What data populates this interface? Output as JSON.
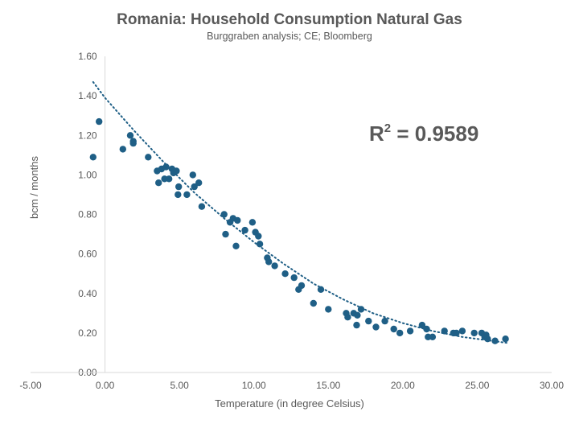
{
  "chart_data": {
    "type": "scatter",
    "title": "Romania: Household Consumption Natural Gas",
    "subtitle": "Burggraben analysis; CE; Bloomberg",
    "xlabel": "Temperature (in degree Celsius)",
    "ylabel": "bcm / months",
    "xlim": [
      -5,
      30
    ],
    "ylim": [
      0,
      1.6
    ],
    "x_ticks": [
      "-5.00",
      "0.00",
      "5.00",
      "10.00",
      "15.00",
      "20.00",
      "25.00",
      "30.00"
    ],
    "x_ticks_values": [
      -5,
      0,
      5,
      10,
      15,
      20,
      25,
      30
    ],
    "y_ticks": [
      "0.00",
      "0.20",
      "0.40",
      "0.60",
      "0.80",
      "1.00",
      "1.20",
      "1.40",
      "1.60"
    ],
    "y_ticks_values": [
      0,
      0.2,
      0.4,
      0.6,
      0.8,
      1.0,
      1.2,
      1.4,
      1.6
    ],
    "annotation": {
      "text": "R",
      "sup": "2",
      "value_text": " = 0.9589"
    },
    "marker_color": "#1f5f86",
    "trendline_color": "#1f5f86",
    "trendline": {
      "type": "polynomial",
      "x": [
        -0.8,
        0,
        2,
        4,
        6,
        8,
        10,
        12,
        14,
        16,
        18,
        20,
        22,
        24,
        26,
        27
      ],
      "y": [
        1.47,
        1.39,
        1.22,
        1.06,
        0.91,
        0.78,
        0.66,
        0.55,
        0.45,
        0.37,
        0.3,
        0.25,
        0.21,
        0.18,
        0.16,
        0.15
      ]
    },
    "points": [
      {
        "x": -0.8,
        "y": 1.09
      },
      {
        "x": -0.4,
        "y": 1.27
      },
      {
        "x": 1.2,
        "y": 1.13
      },
      {
        "x": 1.7,
        "y": 1.2
      },
      {
        "x": 1.9,
        "y": 1.17
      },
      {
        "x": 1.9,
        "y": 1.16
      },
      {
        "x": 2.9,
        "y": 1.09
      },
      {
        "x": 3.5,
        "y": 1.02
      },
      {
        "x": 3.6,
        "y": 0.96
      },
      {
        "x": 3.8,
        "y": 1.03
      },
      {
        "x": 4.0,
        "y": 0.98
      },
      {
        "x": 4.1,
        "y": 1.04
      },
      {
        "x": 4.3,
        "y": 0.98
      },
      {
        "x": 4.5,
        "y": 1.03
      },
      {
        "x": 4.6,
        "y": 1.01
      },
      {
        "x": 4.8,
        "y": 1.02
      },
      {
        "x": 4.9,
        "y": 0.9
      },
      {
        "x": 4.95,
        "y": 0.94
      },
      {
        "x": 5.5,
        "y": 0.9
      },
      {
        "x": 5.9,
        "y": 1.0
      },
      {
        "x": 6.0,
        "y": 0.94
      },
      {
        "x": 6.3,
        "y": 0.96
      },
      {
        "x": 6.5,
        "y": 0.84
      },
      {
        "x": 8.0,
        "y": 0.8
      },
      {
        "x": 8.1,
        "y": 0.7
      },
      {
        "x": 8.4,
        "y": 0.76
      },
      {
        "x": 8.6,
        "y": 0.78
      },
      {
        "x": 8.8,
        "y": 0.64
      },
      {
        "x": 8.9,
        "y": 0.77
      },
      {
        "x": 9.4,
        "y": 0.72
      },
      {
        "x": 9.9,
        "y": 0.76
      },
      {
        "x": 10.1,
        "y": 0.71
      },
      {
        "x": 10.3,
        "y": 0.69
      },
      {
        "x": 10.4,
        "y": 0.65
      },
      {
        "x": 10.9,
        "y": 0.58
      },
      {
        "x": 11.0,
        "y": 0.56
      },
      {
        "x": 11.4,
        "y": 0.54
      },
      {
        "x": 12.1,
        "y": 0.5
      },
      {
        "x": 12.7,
        "y": 0.48
      },
      {
        "x": 13.0,
        "y": 0.42
      },
      {
        "x": 13.2,
        "y": 0.44
      },
      {
        "x": 14.0,
        "y": 0.35
      },
      {
        "x": 14.5,
        "y": 0.42
      },
      {
        "x": 15.0,
        "y": 0.32
      },
      {
        "x": 16.2,
        "y": 0.3
      },
      {
        "x": 16.3,
        "y": 0.28
      },
      {
        "x": 16.7,
        "y": 0.3
      },
      {
        "x": 16.9,
        "y": 0.24
      },
      {
        "x": 16.95,
        "y": 0.29
      },
      {
        "x": 17.2,
        "y": 0.32
      },
      {
        "x": 17.7,
        "y": 0.26
      },
      {
        "x": 18.2,
        "y": 0.23
      },
      {
        "x": 18.8,
        "y": 0.26
      },
      {
        "x": 19.4,
        "y": 0.22
      },
      {
        "x": 19.8,
        "y": 0.2
      },
      {
        "x": 20.5,
        "y": 0.21
      },
      {
        "x": 21.3,
        "y": 0.24
      },
      {
        "x": 21.6,
        "y": 0.22
      },
      {
        "x": 21.7,
        "y": 0.18
      },
      {
        "x": 22.0,
        "y": 0.18
      },
      {
        "x": 22.8,
        "y": 0.21
      },
      {
        "x": 23.4,
        "y": 0.2
      },
      {
        "x": 23.6,
        "y": 0.2
      },
      {
        "x": 24.0,
        "y": 0.21
      },
      {
        "x": 24.8,
        "y": 0.2
      },
      {
        "x": 25.3,
        "y": 0.2
      },
      {
        "x": 25.5,
        "y": 0.18
      },
      {
        "x": 25.6,
        "y": 0.19
      },
      {
        "x": 25.7,
        "y": 0.17
      },
      {
        "x": 26.2,
        "y": 0.16
      },
      {
        "x": 26.9,
        "y": 0.17
      }
    ]
  }
}
